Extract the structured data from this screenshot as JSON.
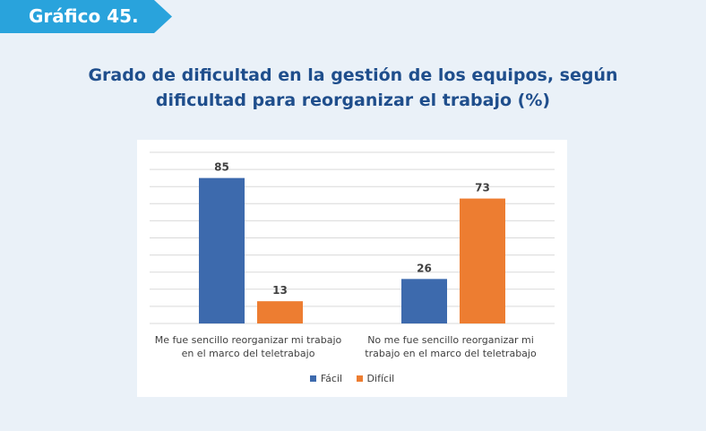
{
  "badge": {
    "label": "Gráfico 45."
  },
  "colors": {
    "badge": "#29a3dc",
    "facil": "#3d6aad",
    "dificil": "#ed7d31",
    "title": "#1f4e8c",
    "grid": "#d9d9d9"
  },
  "chart_data": {
    "type": "bar",
    "title": "Grado de dificultad en la gestión de los equipos, según dificultad para reorganizar el trabajo (%)",
    "title_lines": [
      "Grado de dificultad en la gestión de los equipos, según",
      "dificultad para reorganizar el trabajo (%)"
    ],
    "categories": [
      "Me fue sencillo reorganizar mi trabajo en el marco del teletrabajo",
      "No me fue sencillo reorganizar mi trabajo en el marco del teletrabajo"
    ],
    "category_lines": [
      [
        "Me fue sencillo reorganizar mi trabajo",
        "en el marco del teletrabajo"
      ],
      [
        "No me fue sencillo reorganizar mi",
        "trabajo en el marco del teletrabajo"
      ]
    ],
    "series": [
      {
        "name": "Fácil",
        "values": [
          85,
          26
        ]
      },
      {
        "name": "Difícil",
        "values": [
          13,
          73
        ]
      }
    ],
    "ylim": [
      0,
      100
    ],
    "grid": true,
    "legend": "bottom"
  }
}
